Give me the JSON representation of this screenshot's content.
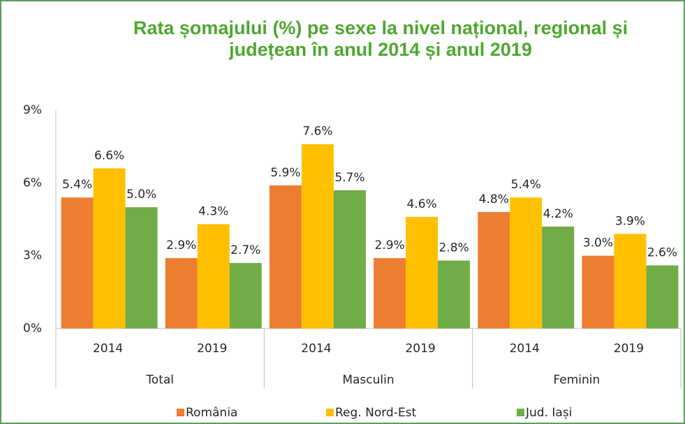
{
  "chart_data": {
    "type": "bar",
    "title": [
      "Rata șomajului (%) pe sexe la nivel național, regional și",
      "județean în anul 2014 și anul 2019"
    ],
    "categories": [
      "2014",
      "2019",
      "2014",
      "2019",
      "2014",
      "2019"
    ],
    "groups": [
      "Total",
      "Masculin",
      "Feminin"
    ],
    "series": [
      {
        "name": "România",
        "color": "#ed7d31",
        "values": [
          5.4,
          2.9,
          5.9,
          2.9,
          4.8,
          3.0
        ],
        "value_labels": [
          "5.4%",
          "2.9%",
          "5.9%",
          "2.9%",
          "4.8%",
          "3.0%"
        ]
      },
      {
        "name": "Reg. Nord-Est",
        "color": "#ffc000",
        "values": [
          6.6,
          4.3,
          7.6,
          4.6,
          5.4,
          3.9
        ],
        "value_labels": [
          "6.6%",
          "4.3%",
          "7.6%",
          "4.6%",
          "5.4%",
          "3.9%"
        ]
      },
      {
        "name": "Jud. Iași",
        "color": "#70ad47",
        "values": [
          5.0,
          2.7,
          5.7,
          2.8,
          4.2,
          2.6
        ],
        "value_labels": [
          "5.0%",
          "2.7%",
          "5.7%",
          "2.8%",
          "4.2%",
          "2.6%"
        ]
      }
    ],
    "ylim": [
      0,
      9
    ],
    "yticks": [
      {
        "value": 0,
        "label": "0%"
      },
      {
        "value": 3,
        "label": "3%"
      },
      {
        "value": 6,
        "label": "6%"
      },
      {
        "value": 9,
        "label": "9%"
      }
    ],
    "grid": false,
    "legend": "bottom"
  }
}
